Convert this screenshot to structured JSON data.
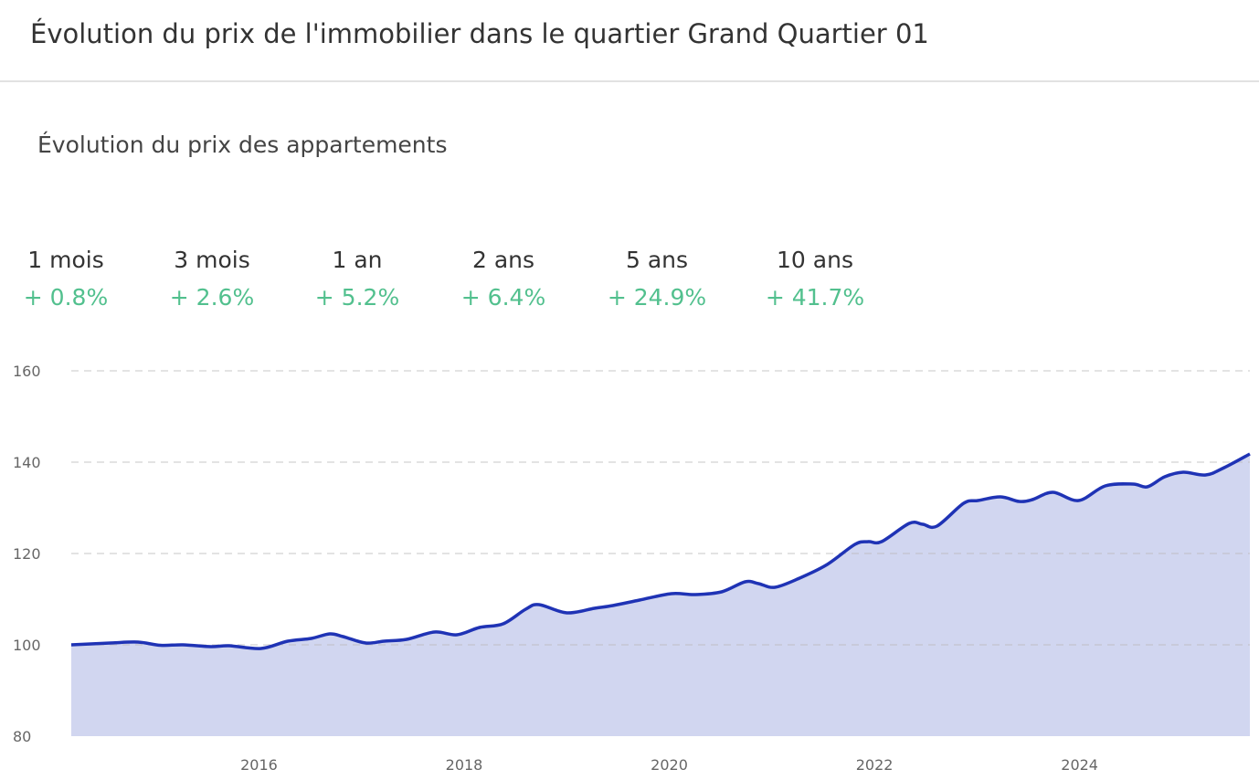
{
  "header": {
    "title": "Évolution du prix de l'immobilier dans le quartier Grand Quartier 01"
  },
  "section": {
    "subtitle": "Évolution du prix des appartements"
  },
  "stats": [
    {
      "label": "1 mois",
      "value": "+ 0.8%"
    },
    {
      "label": "3 mois",
      "value": "+ 2.6%"
    },
    {
      "label": "1 an",
      "value": "+ 5.2%"
    },
    {
      "label": "2 ans",
      "value": "+ 6.4%"
    },
    {
      "label": "5 ans",
      "value": "+ 24.9%"
    },
    {
      "label": "10 ans",
      "value": "+ 41.7%"
    }
  ],
  "colors": {
    "line": "#1f33b5",
    "fill": "#d1d6f0",
    "positive": "#52c08e",
    "grid": "#dddddd"
  },
  "chart_data": {
    "type": "area",
    "title": "",
    "xlabel": "",
    "ylabel": "",
    "xlim": [
      2014.17,
      2025.66
    ],
    "ylim": [
      80,
      160
    ],
    "grid": true,
    "x_ticks": [
      "2016",
      "2018",
      "2020",
      "2022",
      "2024"
    ],
    "y_ticks": [
      "80",
      "100",
      "120",
      "140",
      "160"
    ],
    "x": [
      2014.17,
      2014.55,
      2014.82,
      2015.04,
      2015.26,
      2015.53,
      2015.71,
      2016.02,
      2016.28,
      2016.51,
      2016.69,
      2016.82,
      2017.04,
      2017.22,
      2017.44,
      2017.71,
      2017.93,
      2018.15,
      2018.38,
      2018.6,
      2018.73,
      2019.0,
      2019.27,
      2019.45,
      2019.71,
      2020.02,
      2020.25,
      2020.51,
      2020.74,
      2020.87,
      2021.03,
      2021.27,
      2021.54,
      2021.81,
      2021.94,
      2022.07,
      2022.34,
      2022.47,
      2022.61,
      2022.87,
      2023.01,
      2023.23,
      2023.41,
      2023.54,
      2023.74,
      2023.99,
      2024.25,
      2024.52,
      2024.66,
      2024.83,
      2025.01,
      2025.23,
      2025.41,
      2025.66
    ],
    "values": [
      100,
      100.4,
      100.6,
      99.9,
      100,
      99.6,
      99.8,
      99.2,
      100.8,
      101.4,
      102.4,
      101.8,
      100.4,
      100.8,
      101.2,
      102.8,
      102.2,
      103.8,
      104.6,
      107.8,
      108.8,
      107,
      108,
      108.6,
      109.8,
      111.2,
      111,
      111.6,
      113.8,
      113.4,
      112.6,
      114.6,
      117.6,
      122,
      122.6,
      122.6,
      126.6,
      126.4,
      126,
      131,
      131.6,
      132.4,
      131.4,
      131.8,
      133.4,
      131.6,
      134.8,
      135.2,
      134.6,
      136.8,
      137.8,
      137.2,
      138.8,
      141.8
    ]
  }
}
